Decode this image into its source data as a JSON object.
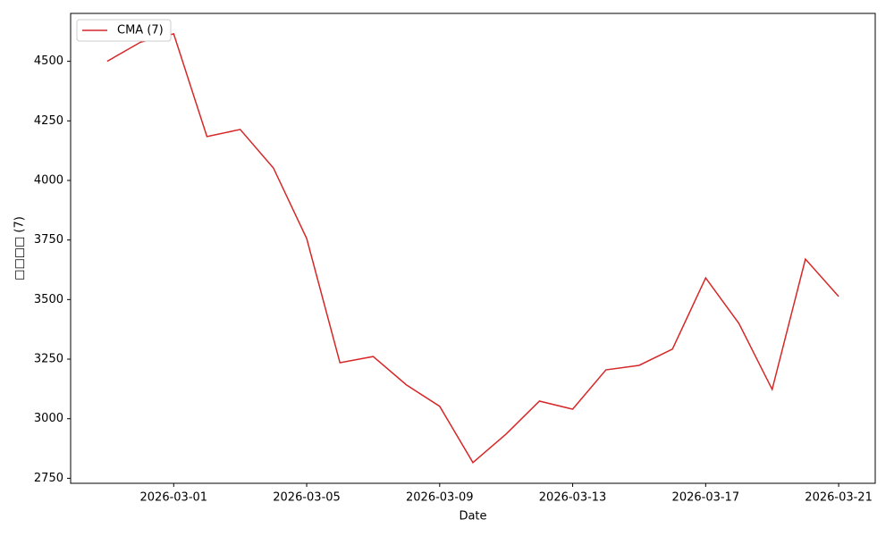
{
  "chart_data": {
    "type": "line",
    "x_label": "Date",
    "y_label": "□□□□ (7)",
    "x": [
      "2026-02-27",
      "2026-02-28",
      "2026-03-01",
      "2026-03-02",
      "2026-03-03",
      "2026-03-04",
      "2026-03-05",
      "2026-03-06",
      "2026-03-07",
      "2026-03-08",
      "2026-03-09",
      "2026-03-10",
      "2026-03-11",
      "2026-03-12",
      "2026-03-13",
      "2026-03-14",
      "2026-03-15",
      "2026-03-16",
      "2026-03-17",
      "2026-03-18",
      "2026-03-19",
      "2026-03-20",
      "2026-03-21"
    ],
    "series": [
      {
        "name": "CMA (7)",
        "color": "#d62728",
        "values": [
          4500,
          4580,
          4615,
          4184,
          4214,
          4052,
          3756,
          3235,
          3261,
          3142,
          3052,
          2816,
          2936,
          3074,
          3040,
          3205,
          3224,
          3292,
          3591,
          3400,
          3123,
          3670,
          3513
        ]
      }
    ],
    "xlim": [
      "2026-02-25T21:36",
      "2026-03-22T02:24"
    ],
    "xticks": [
      "2026-03-01",
      "2026-03-05",
      "2026-03-09",
      "2026-03-13",
      "2026-03-17",
      "2026-03-21"
    ],
    "ylim": [
      2729,
      4701
    ],
    "yticks": [
      2750,
      3000,
      3250,
      3500,
      3750,
      4000,
      4250,
      4500
    ],
    "grid": false,
    "legend": "upper left"
  }
}
